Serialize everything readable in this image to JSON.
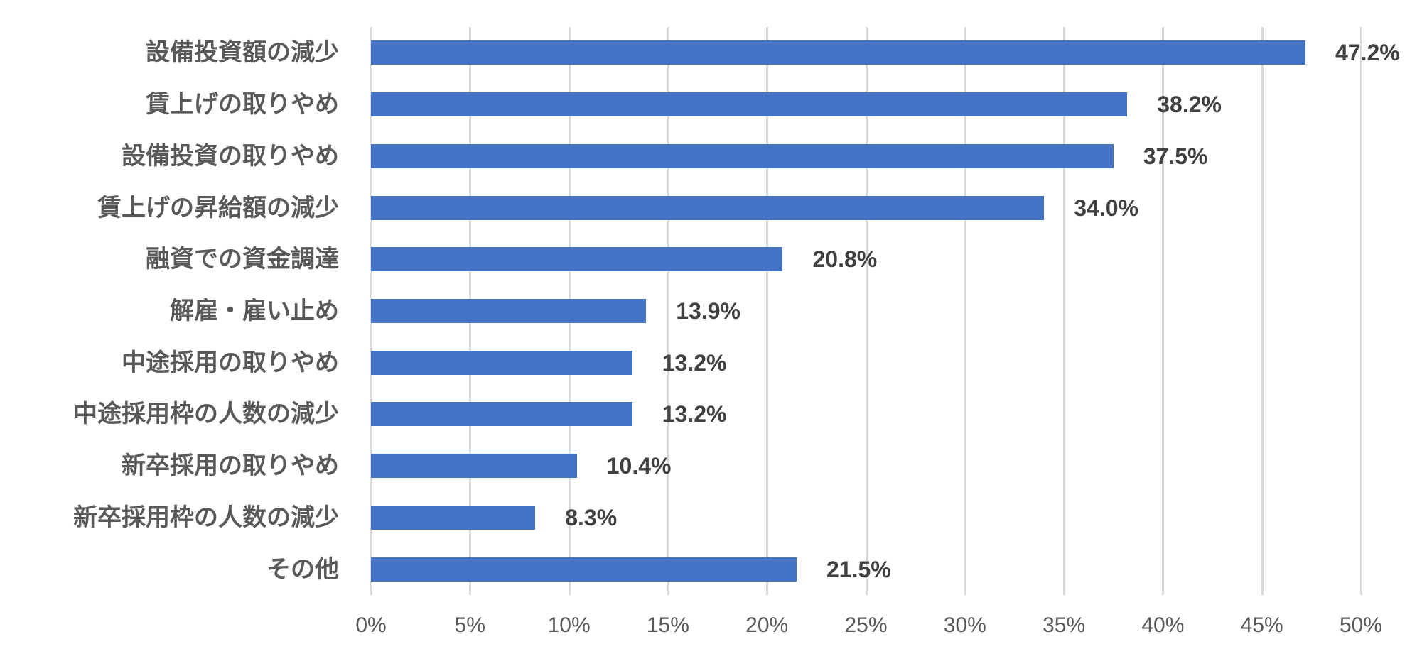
{
  "chart_data": {
    "type": "bar",
    "orientation": "horizontal",
    "title": "",
    "xlabel": "",
    "ylabel": "",
    "categories": [
      "設備投資額の減少",
      "賃上げの取りやめ",
      "設備投資の取りやめ",
      "賃上げの昇給額の減少",
      "融資での資金調達",
      "解雇・雇い止め",
      "中途採用の取りやめ",
      "中途採用枠の人数の減少",
      "新卒採用の取りやめ",
      "新卒採用枠の人数の減少",
      "その他"
    ],
    "values": [
      47.2,
      38.2,
      37.5,
      34.0,
      20.8,
      13.9,
      13.2,
      13.2,
      10.4,
      8.3,
      21.5
    ],
    "value_labels": [
      "47.2%",
      "38.2%",
      "37.5%",
      "34.0%",
      "20.8%",
      "13.9%",
      "13.2%",
      "13.2%",
      "10.4%",
      "8.3%",
      "21.5%"
    ],
    "x_ticks": [
      "0%",
      "5%",
      "10%",
      "15%",
      "20%",
      "25%",
      "30%",
      "35%",
      "40%",
      "45%",
      "50%"
    ],
    "x_tick_values": [
      0,
      5,
      10,
      15,
      20,
      25,
      30,
      35,
      40,
      45,
      50
    ],
    "xlim": [
      0,
      50
    ],
    "grid": "vertical-only",
    "legend": "none",
    "colors": {
      "bar": "#4472C4",
      "gridline": "#D9D9D9",
      "category_label": "#595959",
      "value_label": "#404040",
      "tick_label": "#595959",
      "background": "#FFFFFF"
    }
  }
}
